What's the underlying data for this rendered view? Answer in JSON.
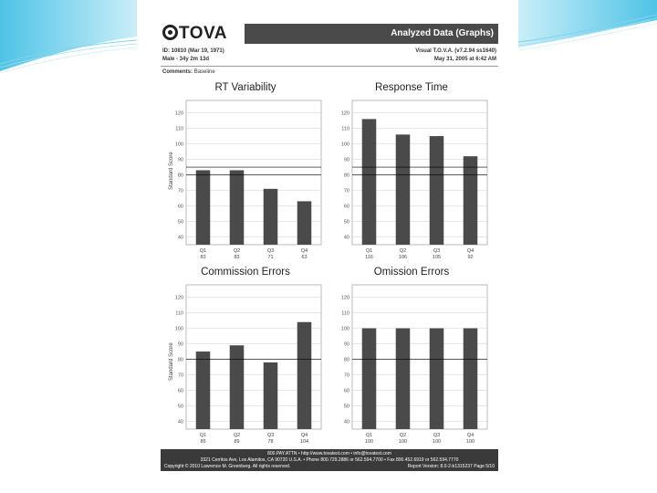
{
  "header": {
    "logo_text": "TOVA",
    "title": "Analyzed Data (Graphs)"
  },
  "info": {
    "id_line": "ID: 10810   (Mar 19, 1971)",
    "demo_line": "Male - 34y 2m 13d",
    "test_line": "Visual T.O.V.A. (v7.2.94 ss1640)",
    "date_line": "May 31, 2005 at 6:42 AM"
  },
  "comments": {
    "label": "Comments:",
    "value": "Baseline"
  },
  "footer": {
    "line1": "800.PAY.ATTN • http://www.tovatest.com • info@tovatest.com",
    "line2": "3321 Cerritos Ave, Los Alamitos, CA 90720 U.S.A. • Phone 800.729.2886 or 562.594.7700 • Fax 800.452.6919 or 562.594.7770",
    "copyright": "Copyright © 2010 Lawrence M. Greenberg. All rights reserved.",
    "version": "Report Version: 8.0-2-b1315237   Page 5/10"
  },
  "colors": {
    "bar": "#4a4a4a",
    "refline": "#000000",
    "grid": "#cfcfcf"
  },
  "chart_data": [
    {
      "type": "bar",
      "title": "RT Variability",
      "ylabel": "Standard Score",
      "categories": [
        "Q1",
        "Q2",
        "Q3",
        "Q4"
      ],
      "value_labels": [
        "83",
        "83",
        "71",
        "63"
      ],
      "values": [
        83,
        83,
        71,
        63
      ],
      "yticks": [
        40,
        50,
        60,
        70,
        80,
        90,
        100,
        110,
        120
      ],
      "ylim": [
        35,
        128
      ],
      "reference_lines": [
        80,
        85
      ]
    },
    {
      "type": "bar",
      "title": "Response Time",
      "ylabel": "",
      "categories": [
        "Q1",
        "Q2",
        "Q3",
        "Q4"
      ],
      "value_labels": [
        "116",
        "106",
        "105",
        "92"
      ],
      "values": [
        116,
        106,
        105,
        92
      ],
      "yticks": [
        40,
        50,
        60,
        70,
        80,
        90,
        100,
        110,
        120
      ],
      "ylim": [
        35,
        128
      ],
      "reference_lines": [
        80,
        85
      ]
    },
    {
      "type": "bar",
      "title": "Commission Errors",
      "ylabel": "Standard Score",
      "categories": [
        "Q1",
        "Q2",
        "Q3",
        "Q4"
      ],
      "value_labels": [
        "85",
        "89",
        "78",
        "104"
      ],
      "values": [
        85,
        89,
        78,
        104
      ],
      "yticks": [
        40,
        50,
        60,
        70,
        80,
        90,
        100,
        110,
        120
      ],
      "ylim": [
        35,
        128
      ],
      "reference_lines": [
        80
      ]
    },
    {
      "type": "bar",
      "title": "Omission Errors",
      "ylabel": "",
      "categories": [
        "Q1",
        "Q2",
        "Q3",
        "Q4"
      ],
      "value_labels": [
        "100",
        "100",
        "100",
        "100"
      ],
      "values": [
        100,
        100,
        100,
        100
      ],
      "yticks": [
        40,
        50,
        60,
        70,
        80,
        90,
        100,
        110,
        120
      ],
      "ylim": [
        35,
        128
      ],
      "reference_lines": [
        80
      ]
    }
  ]
}
